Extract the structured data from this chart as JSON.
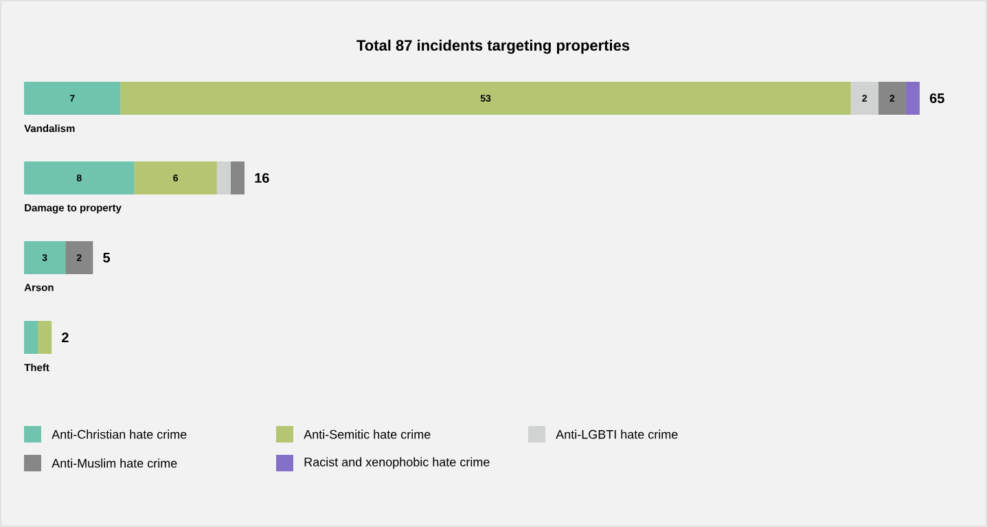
{
  "chart_data": {
    "type": "bar",
    "orientation": "horizontal",
    "stacked": true,
    "title": "Total 87 incidents targeting properties",
    "categories": [
      "Vandalism",
      "Damage to property",
      "Arson",
      "Theft"
    ],
    "series": [
      {
        "name": "Anti-Christian hate crime",
        "color": "#70c4ad",
        "values": [
          7,
          8,
          3,
          1
        ],
        "value_labels": [
          "7",
          "8",
          "3",
          null
        ]
      },
      {
        "name": "Anti-Semitic hate crime",
        "color": "#b5c672",
        "values": [
          53,
          6,
          0,
          1
        ],
        "value_labels": [
          "53",
          "6",
          null,
          null
        ]
      },
      {
        "name": "Anti-LGBTI hate crime",
        "color": "#d0d3d1",
        "values": [
          2,
          1,
          0,
          0
        ],
        "value_labels": [
          "2",
          null,
          null,
          null
        ]
      },
      {
        "name": "Anti-Muslim hate crime",
        "color": "#878787",
        "values": [
          2,
          1,
          2,
          0
        ],
        "value_labels": [
          "2",
          null,
          "2",
          null
        ]
      },
      {
        "name": "Racist and xenophobic hate crime",
        "color": "#8470c8",
        "values": [
          1,
          0,
          0,
          0
        ],
        "value_labels": [
          null,
          null,
          null,
          null
        ]
      }
    ],
    "totals": [
      "65",
      "16",
      "5",
      "2"
    ],
    "legend": "bottom"
  }
}
